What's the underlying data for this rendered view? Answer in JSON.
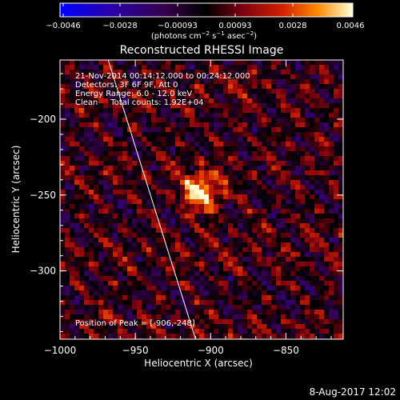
{
  "colorbar": {
    "ticks": [
      "−0.0046",
      "−0.0028",
      "−0.00093",
      "0.00093",
      "0.0028",
      "0.0046"
    ],
    "units_text": "(photons cm",
    "units_exp1": "−2",
    "units_mid": " s",
    "units_exp2": "−1",
    "units_end": " asec",
    "units_exp3": "−2",
    "units_close": ")"
  },
  "chart_data": {
    "type": "heatmap",
    "title": "Reconstructed RHESSI Image",
    "xlabel": "Heliocentric X (arcsec)",
    "ylabel": "Heliocentric Y (arcsec)",
    "xlim": [
      -1000,
      -812
    ],
    "ylim": [
      -345,
      -161
    ],
    "xticks": [
      -1000,
      -950,
      -900,
      -850
    ],
    "xtick_labels": [
      "−1000",
      "−950",
      "−900",
      "−850"
    ],
    "yticks": [
      -200,
      -250,
      -300
    ],
    "ytick_labels": [
      "−200",
      "−250",
      "−300"
    ],
    "value_range": [
      -0.0046,
      0.0046
    ],
    "peak": {
      "x": -906,
      "y": -248
    },
    "limb_line": [
      [
        -968,
        -161
      ],
      [
        -910,
        -345
      ]
    ],
    "grid": false,
    "legend": "none"
  },
  "annotations": {
    "time_range": "21-Nov-2014 00:14:12.000 to 00:24:12.000",
    "detectors": "Detectors: 3F 6F 9F, Att 0",
    "energy": "Energy Range: 6.0 - 12.0 keV",
    "method": "Clean     Total counts: 1.92E+04",
    "peak_text": "Position of Peak = [-906,-248]"
  },
  "footer": {
    "date": "8-Aug-2017 12:02"
  }
}
